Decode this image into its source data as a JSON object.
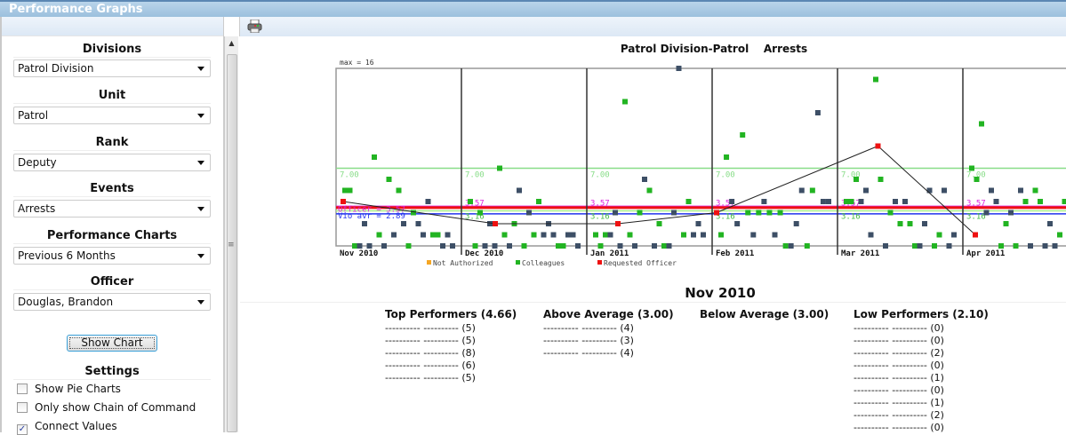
{
  "window": {
    "title": "Performance Graphs"
  },
  "sidebar": {
    "filters": [
      {
        "label": "Divisions",
        "value": "Patrol Division"
      },
      {
        "label": "Unit",
        "value": "Patrol"
      },
      {
        "label": "Rank",
        "value": "Deputy"
      },
      {
        "label": "Events",
        "value": "Arrests"
      },
      {
        "label": "Performance Charts",
        "value": "Previous 6 Months"
      },
      {
        "label": "Officer",
        "value": "Douglas, Brandon"
      }
    ],
    "show_chart_label": "Show Chart",
    "settings_label": "Settings",
    "settings": [
      {
        "label": "Show Pie Charts",
        "checked": false
      },
      {
        "label": "Only show Chain of Command",
        "checked": false
      },
      {
        "label": "Connect Values",
        "checked": true
      }
    ]
  },
  "toolbar": {
    "print_icon": "printer-icon"
  },
  "chart_data": {
    "type": "scatter",
    "title": "Patrol Division-Patrol    Arrests",
    "max_label": "max = 16",
    "ylim": [
      0,
      16
    ],
    "months": [
      "Nov 2010",
      "Dec 2010",
      "Jan 2011",
      "Feb 2011",
      "Mar 2011",
      "Apr 2011"
    ],
    "legend": [
      {
        "label": "Not Authorized",
        "color": "#f5a623"
      },
      {
        "label": "Colleagues",
        "color": "#22b422"
      },
      {
        "label": "Requested Officer",
        "color": "#ee1111"
      }
    ],
    "colors": {
      "g": "#22b422",
      "d": "#3d4f66",
      "officer": "#ee1111"
    },
    "reference_lines": [
      {
        "value": 7.0,
        "label": "7.00",
        "color": "#88dd88"
      },
      {
        "value": 3.57,
        "label": "3.57",
        "color": "#dd22dd"
      },
      {
        "value": 3.45,
        "label": "",
        "color": "#ee1111"
      },
      {
        "value": 3.16,
        "label": "3.16",
        "color": "#aaee88"
      },
      {
        "value": 2.89,
        "label": "",
        "color": "#2233ee"
      }
    ],
    "first_month_labels": {
      "officer": "Officer = 3.57",
      "average": "Vio avr = 2.89"
    },
    "officer_values": [
      4,
      2,
      2,
      3,
      9,
      1
    ],
    "points": [
      [
        [
          5,
          "g"
        ],
        [
          5,
          "g"
        ],
        [
          0,
          "g"
        ],
        [
          0,
          "d"
        ],
        [
          2,
          "d"
        ],
        [
          0,
          "d"
        ],
        [
          8,
          "g"
        ],
        [
          1,
          "g"
        ],
        [
          0,
          "d"
        ],
        [
          6,
          "g"
        ],
        [
          1,
          "d"
        ],
        [
          5,
          "g"
        ],
        [
          2,
          "d"
        ],
        [
          0,
          "g"
        ],
        [
          3,
          "g"
        ],
        [
          2,
          "d"
        ],
        [
          1,
          "d"
        ],
        [
          4,
          "d"
        ],
        [
          1,
          "g"
        ],
        [
          1,
          "g"
        ],
        [
          0,
          "d"
        ],
        [
          1,
          "d"
        ],
        [
          0,
          "d"
        ]
      ],
      [
        [
          4,
          "g"
        ],
        [
          0,
          "g"
        ],
        [
          3,
          "g"
        ],
        [
          0,
          "d"
        ],
        [
          2,
          "d"
        ],
        [
          0,
          "d"
        ],
        [
          7,
          "g"
        ],
        [
          1,
          "g"
        ],
        [
          0,
          "d"
        ],
        [
          2,
          "g"
        ],
        [
          5,
          "d"
        ],
        [
          0,
          "g"
        ],
        [
          3,
          "d"
        ],
        [
          1,
          "g"
        ],
        [
          4,
          "g"
        ],
        [
          1,
          "d"
        ],
        [
          2,
          "d"
        ],
        [
          1,
          "d"
        ],
        [
          0,
          "g"
        ],
        [
          0,
          "g"
        ],
        [
          1,
          "d"
        ],
        [
          1,
          "d"
        ],
        [
          0,
          "d"
        ]
      ],
      [
        [
          1,
          "g"
        ],
        [
          0,
          "g"
        ],
        [
          1,
          "g"
        ],
        [
          1,
          "d"
        ],
        [
          3,
          "d"
        ],
        [
          0,
          "d"
        ],
        [
          13,
          "g"
        ],
        [
          1,
          "g"
        ],
        [
          0,
          "d"
        ],
        [
          3,
          "g"
        ],
        [
          6,
          "d"
        ],
        [
          5,
          "g"
        ],
        [
          0,
          "d"
        ],
        [
          2,
          "g"
        ],
        [
          0,
          "g"
        ],
        [
          0,
          "d"
        ],
        [
          3,
          "d"
        ],
        [
          16,
          "d"
        ],
        [
          1,
          "g"
        ],
        [
          4,
          "g"
        ],
        [
          1,
          "d"
        ],
        [
          2,
          "d"
        ],
        [
          1,
          "d"
        ]
      ],
      [
        [
          1,
          "g"
        ],
        [
          8,
          "g"
        ],
        [
          4,
          "d"
        ],
        [
          2,
          "d"
        ],
        [
          10,
          "g"
        ],
        [
          3,
          "g"
        ],
        [
          1,
          "d"
        ],
        [
          3,
          "g"
        ],
        [
          4,
          "d"
        ],
        [
          3,
          "g"
        ],
        [
          1,
          "d"
        ],
        [
          3,
          "g"
        ],
        [
          0,
          "g"
        ],
        [
          0,
          "d"
        ],
        [
          2,
          "d"
        ],
        [
          5,
          "d"
        ],
        [
          0,
          "g"
        ],
        [
          5,
          "g"
        ],
        [
          12,
          "d"
        ],
        [
          4,
          "d"
        ],
        [
          4,
          "d"
        ]
      ],
      [
        [
          4,
          "g"
        ],
        [
          4,
          "g"
        ],
        [
          6,
          "g"
        ],
        [
          4,
          "d"
        ],
        [
          5,
          "d"
        ],
        [
          1,
          "d"
        ],
        [
          15,
          "g"
        ],
        [
          6,
          "g"
        ],
        [
          0,
          "d"
        ],
        [
          3,
          "g"
        ],
        [
          4,
          "d"
        ],
        [
          2,
          "g"
        ],
        [
          4,
          "d"
        ],
        [
          2,
          "g"
        ],
        [
          0,
          "g"
        ],
        [
          0,
          "d"
        ],
        [
          2,
          "d"
        ],
        [
          5,
          "d"
        ],
        [
          0,
          "g"
        ],
        [
          1,
          "g"
        ],
        [
          5,
          "d"
        ],
        [
          0,
          "d"
        ],
        [
          1,
          "d"
        ]
      ],
      [
        [
          7,
          "g"
        ],
        [
          6,
          "g"
        ],
        [
          11,
          "g"
        ],
        [
          3,
          "d"
        ],
        [
          5,
          "d"
        ],
        [
          4,
          "d"
        ],
        [
          0,
          "g"
        ],
        [
          2,
          "g"
        ],
        [
          3,
          "d"
        ],
        [
          0,
          "g"
        ],
        [
          5,
          "d"
        ],
        [
          4,
          "g"
        ],
        [
          0,
          "d"
        ],
        [
          5,
          "g"
        ],
        [
          4,
          "g"
        ],
        [
          0,
          "d"
        ],
        [
          2,
          "d"
        ],
        [
          0,
          "d"
        ],
        [
          1,
          "g"
        ],
        [
          4,
          "g"
        ],
        [
          4,
          "d"
        ],
        [
          14,
          "d"
        ],
        [
          6,
          "d"
        ]
      ]
    ]
  },
  "summary": {
    "month": "Nov 2010",
    "columns": [
      {
        "title": "Top Performers (4.66)",
        "rows": [
          "---------- ---------- (5)",
          "---------- ---------- (5)",
          "---------- ---------- (8)",
          "---------- ---------- (6)",
          "---------- ---------- (5)"
        ]
      },
      {
        "title": "Above Average (3.00)",
        "rows": [
          "---------- ---------- (4)",
          "---------- ---------- (3)",
          "---------- ---------- (4)"
        ]
      },
      {
        "title": "Below Average (3.00)",
        "rows": []
      },
      {
        "title": "Low Performers (2.10)",
        "rows": [
          "---------- ---------- (0)",
          "---------- ---------- (0)",
          "---------- ---------- (2)",
          "---------- ---------- (0)",
          "---------- ---------- (1)",
          "---------- ---------- (0)",
          "---------- ---------- (1)",
          "---------- ---------- (2)",
          "---------- ---------- (0)"
        ]
      }
    ]
  }
}
